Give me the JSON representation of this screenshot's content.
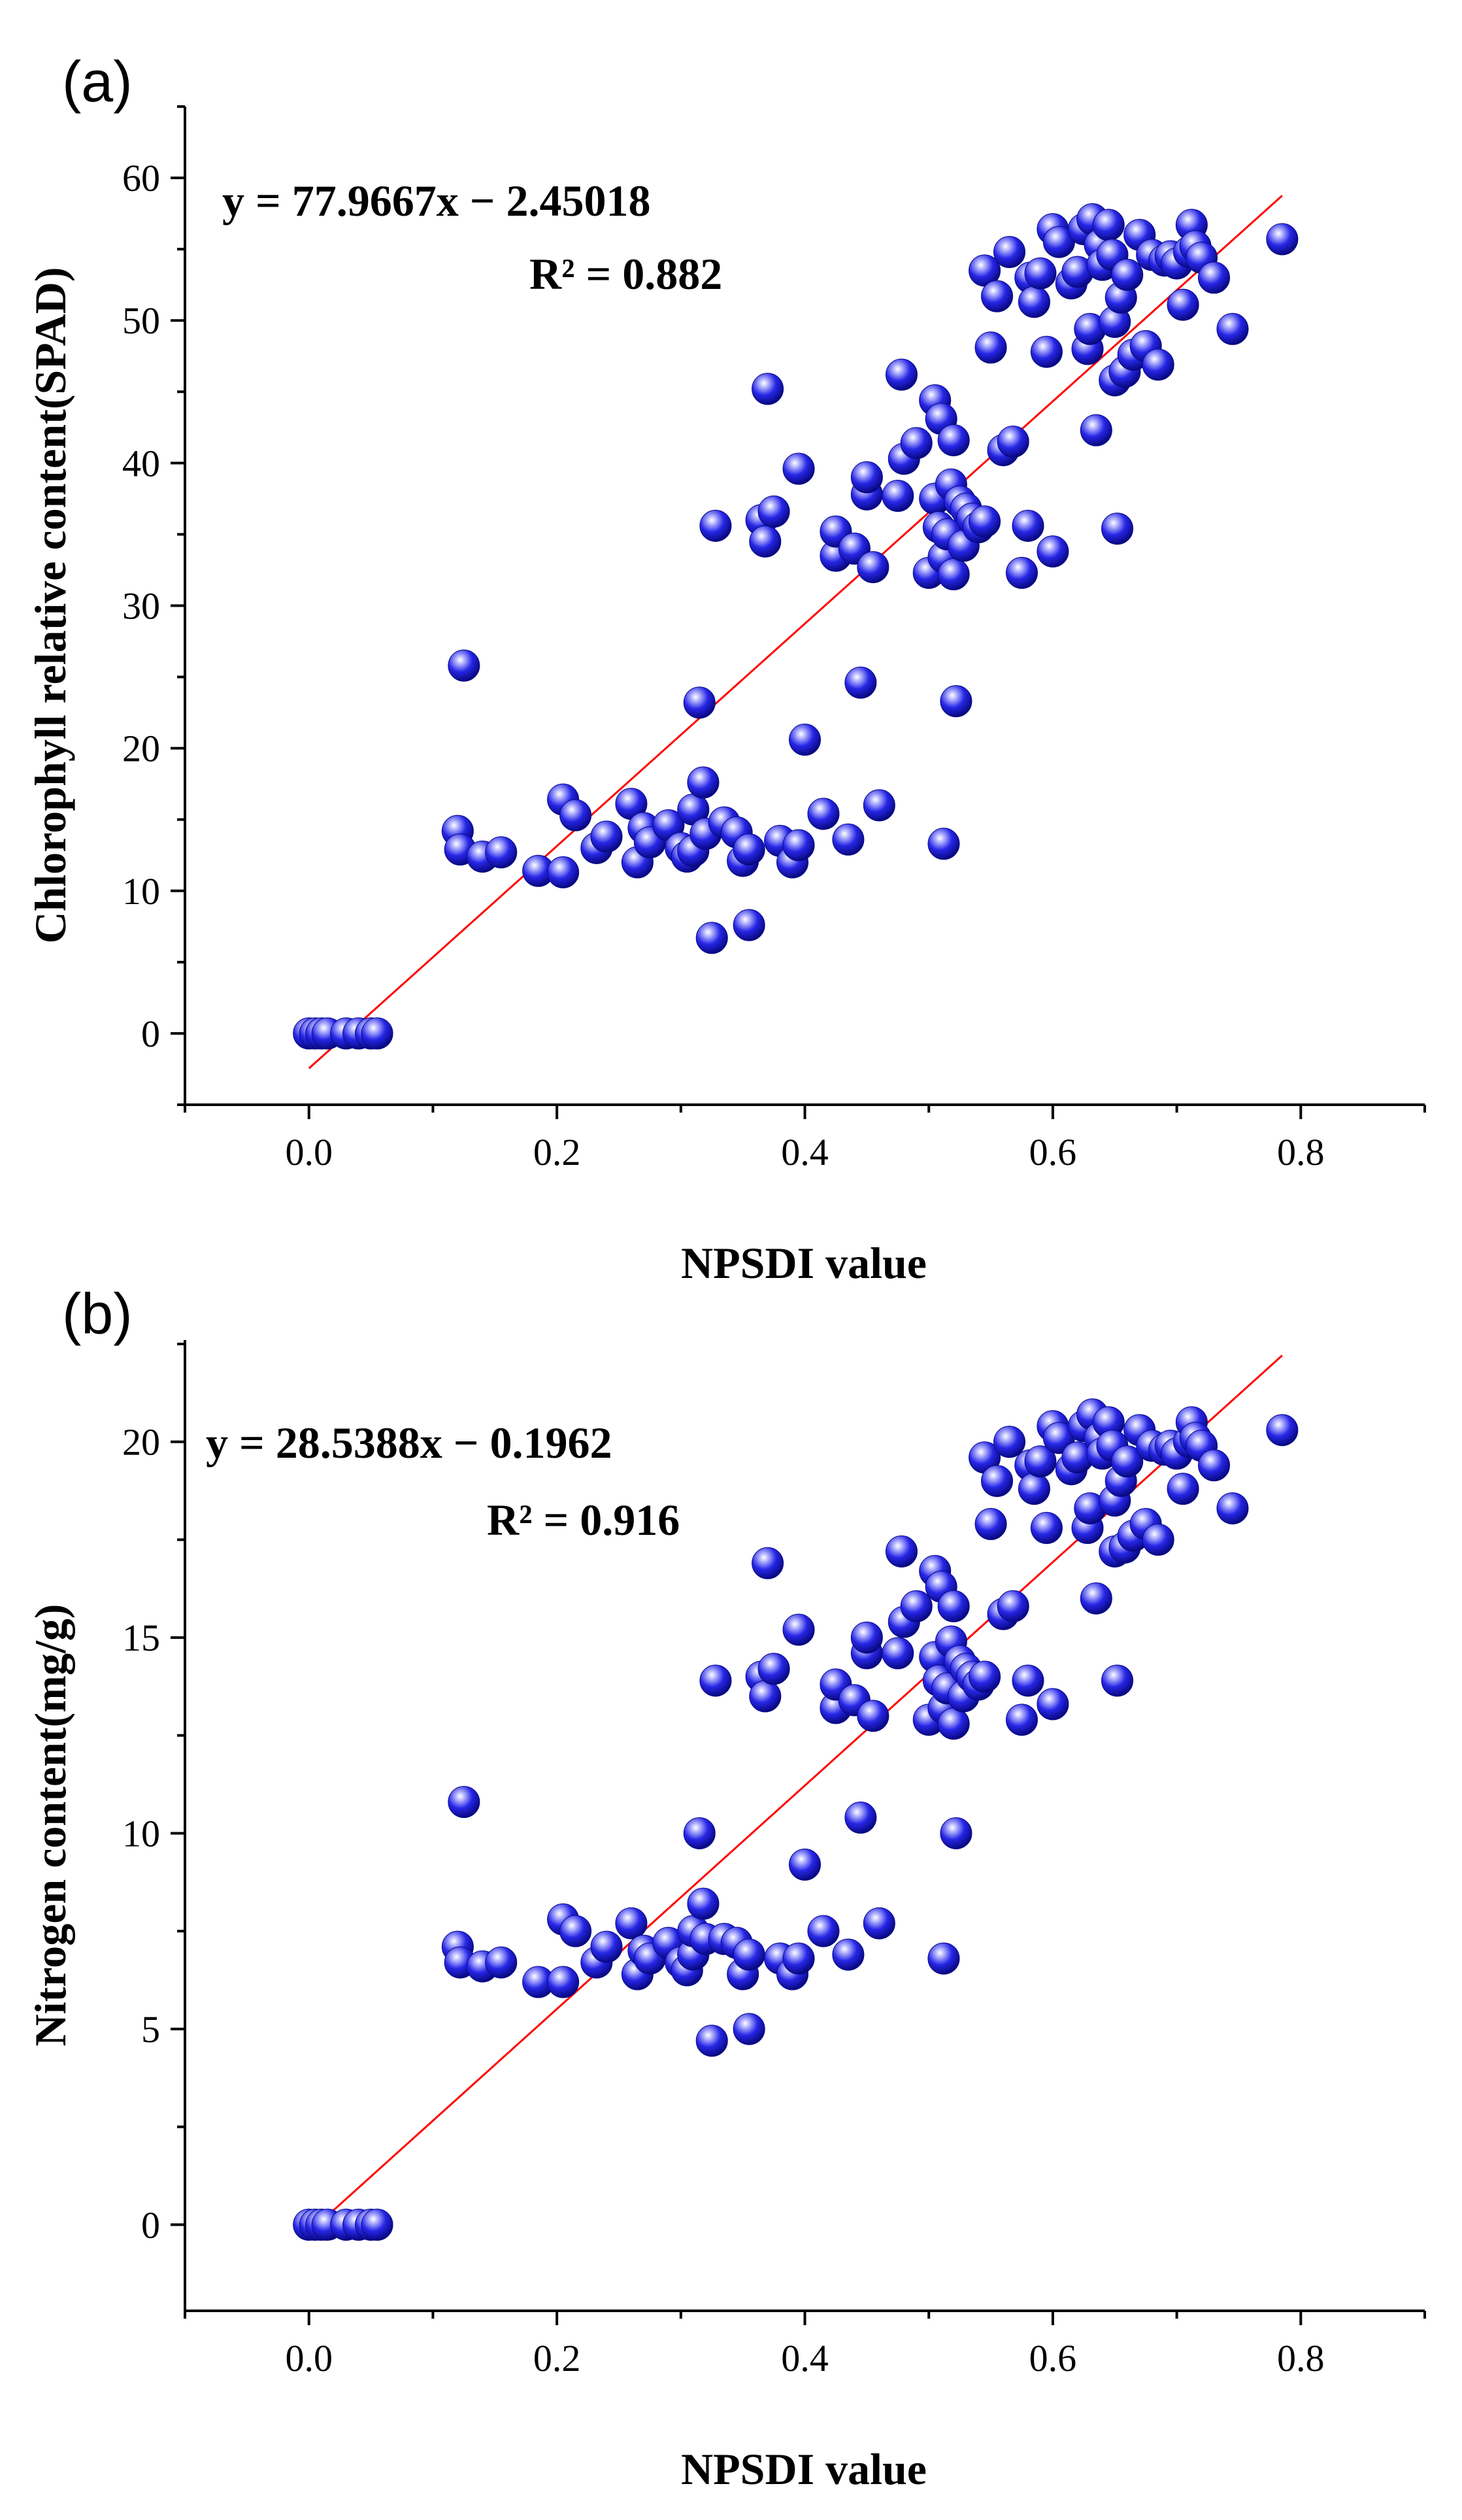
{
  "chart_data": [
    {
      "type": "scatter",
      "panel_label": "(a)",
      "title": "",
      "xlabel": "NPSDI value",
      "ylabel": "Chlorophyll relative content(SPAD)",
      "xlim": [
        -0.1,
        0.9
      ],
      "ylim": [
        -5,
        65
      ],
      "xticks": [
        0.0,
        0.2,
        0.4,
        0.6,
        0.8
      ],
      "xtick_labels": [
        "0.0",
        "0.2",
        "0.4",
        "0.6",
        "0.8"
      ],
      "yticks": [
        0,
        10,
        20,
        30,
        40,
        50,
        60
      ],
      "ytick_labels": [
        "0",
        "10",
        "20",
        "30",
        "40",
        "50",
        "60"
      ],
      "marker_color": "#1f1fdc",
      "fit_color": "#ff0000",
      "fit": {
        "slope": 77.9667,
        "intercept": -2.45018,
        "x_range": [
          0.0,
          0.785
        ]
      },
      "equation": "y = 77.9667x − 2.45018",
      "r2": "R² = 0.882",
      "points": [
        [
          0.0,
          0
        ],
        [
          0.005,
          0
        ],
        [
          0.01,
          0
        ],
        [
          0.015,
          0
        ],
        [
          0.03,
          0
        ],
        [
          0.04,
          0
        ],
        [
          0.05,
          0
        ],
        [
          0.055,
          0
        ],
        [
          0.12,
          14.2
        ],
        [
          0.122,
          12.9
        ],
        [
          0.125,
          25.8
        ],
        [
          0.14,
          12.4
        ],
        [
          0.155,
          12.7
        ],
        [
          0.185,
          11.4
        ],
        [
          0.205,
          16.4
        ],
        [
          0.205,
          11.3
        ],
        [
          0.215,
          15.3
        ],
        [
          0.232,
          13
        ],
        [
          0.24,
          13.8
        ],
        [
          0.26,
          16.1
        ],
        [
          0.265,
          12
        ],
        [
          0.27,
          14.4
        ],
        [
          0.275,
          13.4
        ],
        [
          0.29,
          14.6
        ],
        [
          0.3,
          13
        ],
        [
          0.305,
          12.4
        ],
        [
          0.31,
          12.8
        ],
        [
          0.31,
          15.7
        ],
        [
          0.315,
          23.2
        ],
        [
          0.318,
          17.6
        ],
        [
          0.32,
          14
        ],
        [
          0.325,
          6.7
        ],
        [
          0.328,
          35.6
        ],
        [
          0.335,
          14.8
        ],
        [
          0.345,
          14.1
        ],
        [
          0.35,
          12.1
        ],
        [
          0.355,
          7.6
        ],
        [
          0.355,
          12.9
        ],
        [
          0.365,
          36
        ],
        [
          0.368,
          34.5
        ],
        [
          0.37,
          45.2
        ],
        [
          0.375,
          36.6
        ],
        [
          0.38,
          13.5
        ],
        [
          0.39,
          12
        ],
        [
          0.395,
          13.2
        ],
        [
          0.395,
          39.6
        ],
        [
          0.4,
          20.6
        ],
        [
          0.415,
          15.4
        ],
        [
          0.425,
          33.5
        ],
        [
          0.425,
          35.2
        ],
        [
          0.435,
          13.6
        ],
        [
          0.44,
          34
        ],
        [
          0.445,
          24.6
        ],
        [
          0.45,
          37.8
        ],
        [
          0.45,
          39
        ],
        [
          0.455,
          32.7
        ],
        [
          0.46,
          16
        ],
        [
          0.475,
          37.7
        ],
        [
          0.478,
          46.2
        ],
        [
          0.48,
          40.3
        ],
        [
          0.49,
          41.4
        ],
        [
          0.5,
          32.3
        ],
        [
          0.505,
          44.4
        ],
        [
          0.505,
          37.5
        ],
        [
          0.508,
          35.5
        ],
        [
          0.51,
          43.1
        ],
        [
          0.512,
          13.3
        ],
        [
          0.512,
          33.4
        ],
        [
          0.515,
          35
        ],
        [
          0.518,
          38.5
        ],
        [
          0.52,
          41.6
        ],
        [
          0.52,
          32.2
        ],
        [
          0.522,
          23.3
        ],
        [
          0.525,
          37.3
        ],
        [
          0.528,
          34.2
        ],
        [
          0.53,
          36.8
        ],
        [
          0.535,
          36.1
        ],
        [
          0.54,
          35.5
        ],
        [
          0.545,
          35.9
        ],
        [
          0.545,
          53.5
        ],
        [
          0.55,
          48.1
        ],
        [
          0.555,
          51.7
        ],
        [
          0.56,
          40.9
        ],
        [
          0.565,
          54.8
        ],
        [
          0.568,
          41.5
        ],
        [
          0.575,
          32.3
        ],
        [
          0.58,
          35.6
        ],
        [
          0.582,
          53
        ],
        [
          0.585,
          51.3
        ],
        [
          0.59,
          53.3
        ],
        [
          0.595,
          47.8
        ],
        [
          0.6,
          33.8
        ],
        [
          0.6,
          56.4
        ],
        [
          0.605,
          55.5
        ],
        [
          0.615,
          52.6
        ],
        [
          0.62,
          53.4
        ],
        [
          0.625,
          56.4
        ],
        [
          0.628,
          48
        ],
        [
          0.63,
          49.4
        ],
        [
          0.632,
          57.1
        ],
        [
          0.635,
          42.3
        ],
        [
          0.638,
          55.3
        ],
        [
          0.64,
          53.9
        ],
        [
          0.645,
          56.7
        ],
        [
          0.648,
          54.6
        ],
        [
          0.65,
          49.9
        ],
        [
          0.65,
          45.8
        ],
        [
          0.652,
          35.4
        ],
        [
          0.655,
          51.6
        ],
        [
          0.658,
          46.4
        ],
        [
          0.66,
          53.2
        ],
        [
          0.665,
          47.6
        ],
        [
          0.67,
          56
        ],
        [
          0.675,
          48.2
        ],
        [
          0.68,
          54.6
        ],
        [
          0.685,
          46.9
        ],
        [
          0.69,
          54.2
        ],
        [
          0.695,
          54.5
        ],
        [
          0.7,
          54
        ],
        [
          0.705,
          51.1
        ],
        [
          0.71,
          54.8
        ],
        [
          0.712,
          56.7
        ],
        [
          0.715,
          55.2
        ],
        [
          0.72,
          54.4
        ],
        [
          0.73,
          53
        ],
        [
          0.745,
          49.4
        ],
        [
          0.785,
          55.7
        ]
      ]
    },
    {
      "type": "scatter",
      "panel_label": "(b)",
      "title": "",
      "xlabel": "NPSDI value",
      "ylabel": "Nitrogen content(mg/g)",
      "xlim": [
        -0.1,
        0.9
      ],
      "ylim": [
        -2.2,
        22.6
      ],
      "xticks": [
        0.0,
        0.2,
        0.4,
        0.6,
        0.8
      ],
      "xtick_labels": [
        "0.0",
        "0.2",
        "0.4",
        "0.6",
        "0.8"
      ],
      "yticks": [
        0,
        5,
        10,
        15,
        20
      ],
      "ytick_labels": [
        "0",
        "5",
        "10",
        "15",
        "20"
      ],
      "marker_color": "#1f1fdc",
      "fit_color": "#ff0000",
      "fit": {
        "slope": 28.5388,
        "intercept": -0.1962,
        "x_range": [
          0.0,
          0.785
        ]
      },
      "equation": "y = 28.5388x − 0.1962",
      "r2": "R² = 0.916",
      "points": [
        [
          0.0,
          0
        ],
        [
          0.005,
          0
        ],
        [
          0.01,
          0
        ],
        [
          0.015,
          0
        ],
        [
          0.03,
          0
        ],
        [
          0.04,
          0
        ],
        [
          0.05,
          0
        ],
        [
          0.055,
          0
        ],
        [
          0.12,
          7.1
        ],
        [
          0.122,
          6.7
        ],
        [
          0.125,
          10.8
        ],
        [
          0.14,
          6.6
        ],
        [
          0.155,
          6.7
        ],
        [
          0.185,
          6.2
        ],
        [
          0.205,
          7.8
        ],
        [
          0.205,
          6.2
        ],
        [
          0.215,
          7.5
        ],
        [
          0.232,
          6.7
        ],
        [
          0.24,
          7.1
        ],
        [
          0.26,
          7.7
        ],
        [
          0.265,
          6.4
        ],
        [
          0.27,
          7
        ],
        [
          0.275,
          6.8
        ],
        [
          0.29,
          7.2
        ],
        [
          0.3,
          6.7
        ],
        [
          0.305,
          6.5
        ],
        [
          0.31,
          6.9
        ],
        [
          0.31,
          7.5
        ],
        [
          0.315,
          10
        ],
        [
          0.318,
          8.2
        ],
        [
          0.32,
          7.3
        ],
        [
          0.325,
          4.7
        ],
        [
          0.328,
          13.9
        ],
        [
          0.335,
          7.3
        ],
        [
          0.345,
          7.2
        ],
        [
          0.35,
          6.4
        ],
        [
          0.355,
          5
        ],
        [
          0.355,
          6.9
        ],
        [
          0.365,
          14
        ],
        [
          0.368,
          13.5
        ],
        [
          0.37,
          16.9
        ],
        [
          0.375,
          14.2
        ],
        [
          0.38,
          6.8
        ],
        [
          0.39,
          6.4
        ],
        [
          0.395,
          6.8
        ],
        [
          0.395,
          15.2
        ],
        [
          0.4,
          9.2
        ],
        [
          0.415,
          7.5
        ],
        [
          0.425,
          13.2
        ],
        [
          0.425,
          13.8
        ],
        [
          0.435,
          6.9
        ],
        [
          0.44,
          13.4
        ],
        [
          0.445,
          10.4
        ],
        [
          0.45,
          14.6
        ],
        [
          0.45,
          15
        ],
        [
          0.455,
          13
        ],
        [
          0.46,
          7.7
        ],
        [
          0.475,
          14.6
        ],
        [
          0.478,
          17.2
        ],
        [
          0.48,
          15.4
        ],
        [
          0.49,
          15.8
        ],
        [
          0.5,
          12.9
        ],
        [
          0.505,
          16.7
        ],
        [
          0.505,
          14.5
        ],
        [
          0.508,
          13.9
        ],
        [
          0.51,
          16.3
        ],
        [
          0.512,
          6.8
        ],
        [
          0.512,
          13.2
        ],
        [
          0.515,
          13.7
        ],
        [
          0.518,
          14.9
        ],
        [
          0.52,
          15.8
        ],
        [
          0.52,
          12.8
        ],
        [
          0.522,
          10
        ],
        [
          0.525,
          14.4
        ],
        [
          0.528,
          13.5
        ],
        [
          0.53,
          14.2
        ],
        [
          0.535,
          14
        ],
        [
          0.54,
          13.8
        ],
        [
          0.545,
          14
        ],
        [
          0.545,
          19.6
        ],
        [
          0.55,
          17.9
        ],
        [
          0.555,
          19
        ],
        [
          0.56,
          15.6
        ],
        [
          0.565,
          20
        ],
        [
          0.568,
          15.8
        ],
        [
          0.575,
          12.9
        ],
        [
          0.58,
          13.9
        ],
        [
          0.582,
          19.4
        ],
        [
          0.585,
          18.8
        ],
        [
          0.59,
          19.5
        ],
        [
          0.595,
          17.8
        ],
        [
          0.6,
          13.3
        ],
        [
          0.6,
          20.4
        ],
        [
          0.605,
          20.1
        ],
        [
          0.615,
          19.3
        ],
        [
          0.62,
          19.6
        ],
        [
          0.625,
          20.4
        ],
        [
          0.628,
          17.8
        ],
        [
          0.63,
          18.3
        ],
        [
          0.632,
          20.7
        ],
        [
          0.635,
          16
        ],
        [
          0.638,
          20.1
        ],
        [
          0.64,
          19.7
        ],
        [
          0.645,
          20.5
        ],
        [
          0.648,
          19.9
        ],
        [
          0.65,
          18.5
        ],
        [
          0.65,
          17.2
        ],
        [
          0.652,
          13.9
        ],
        [
          0.655,
          19
        ],
        [
          0.658,
          17.3
        ],
        [
          0.66,
          19.5
        ],
        [
          0.665,
          17.6
        ],
        [
          0.67,
          20.3
        ],
        [
          0.675,
          17.9
        ],
        [
          0.68,
          19.9
        ],
        [
          0.685,
          17.5
        ],
        [
          0.69,
          19.8
        ],
        [
          0.695,
          19.9
        ],
        [
          0.7,
          19.7
        ],
        [
          0.705,
          18.8
        ],
        [
          0.71,
          20
        ],
        [
          0.712,
          20.5
        ],
        [
          0.715,
          20.1
        ],
        [
          0.72,
          19.9
        ],
        [
          0.73,
          19.4
        ],
        [
          0.745,
          18.3
        ],
        [
          0.785,
          20.3
        ]
      ]
    }
  ]
}
